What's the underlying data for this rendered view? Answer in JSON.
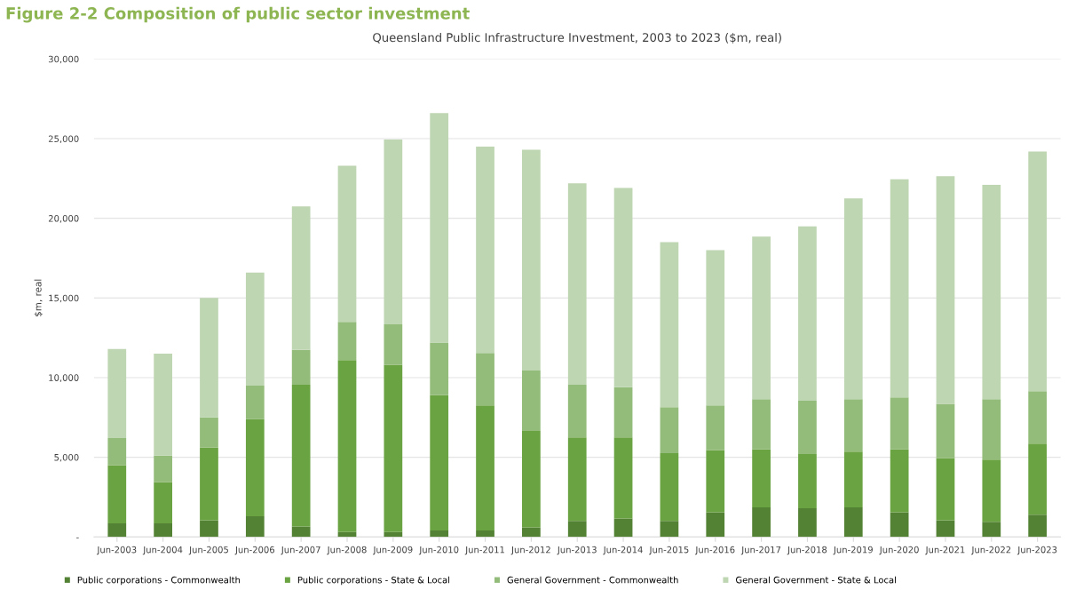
{
  "chart_data": {
    "type": "bar",
    "stacked": true,
    "title": "Figure 2-2 Composition of public sector investment",
    "subtitle": "Queensland Public Infrastructure Investment, 2003 to 2023 ($m, real)",
    "ylabel": "$m, real",
    "categories": [
      "Jun-2003",
      "Jun-2004",
      "Jun-2005",
      "Jun-2006",
      "Jun-2007",
      "Jun-2008",
      "Jun-2009",
      "Jun-2010",
      "Jun-2011",
      "Jun-2012",
      "Jun-2013",
      "Jun-2014",
      "Jun-2015",
      "Jun-2016",
      "Jun-2017",
      "Jun-2018",
      "Jun-2019",
      "Jun-2020",
      "Jun-2021",
      "Jun-2022",
      "Jun-2023"
    ],
    "series": [
      {
        "name": "Public corporations - Commonwealth",
        "color": "#548235",
        "values": [
          850,
          850,
          1050,
          1300,
          650,
          300,
          300,
          400,
          400,
          600,
          1000,
          1150,
          1000,
          1550,
          1850,
          1800,
          1850,
          1550,
          1050,
          950,
          1400
        ]
      },
      {
        "name": "Public corporations - State & Local",
        "color": "#6aa342",
        "values": [
          3650,
          2600,
          4550,
          6100,
          8900,
          10800,
          10500,
          8500,
          7850,
          6050,
          5250,
          5100,
          4250,
          3900,
          3650,
          3400,
          3500,
          3950,
          3900,
          3900,
          4450
        ]
      },
      {
        "name": "General Government - Commonwealth",
        "color": "#93bc7a",
        "values": [
          1700,
          1650,
          1900,
          2100,
          2200,
          2400,
          2550,
          3300,
          3300,
          3800,
          3300,
          3150,
          2900,
          2800,
          3150,
          3350,
          3300,
          3250,
          3400,
          3800,
          3300
        ]
      },
      {
        "name": "General Government - State & Local",
        "color": "#bfd6b3",
        "values": [
          5600,
          6400,
          7500,
          7100,
          9000,
          9800,
          11600,
          14400,
          12950,
          13850,
          12650,
          12500,
          10350,
          9750,
          10200,
          10950,
          12600,
          13700,
          14300,
          13450,
          15050
        ]
      }
    ],
    "ylim": [
      0,
      30000
    ],
    "yticks": [
      {
        "value": 0,
        "label": "-"
      },
      {
        "value": 5000,
        "label": "5,000"
      },
      {
        "value": 10000,
        "label": "10,000"
      },
      {
        "value": 15000,
        "label": "15,000"
      },
      {
        "value": 20000,
        "label": "20,000"
      },
      {
        "value": 25000,
        "label": "25,000"
      },
      {
        "value": 30000,
        "label": "30,000"
      }
    ],
    "grid": "y",
    "legend": "bottom"
  }
}
